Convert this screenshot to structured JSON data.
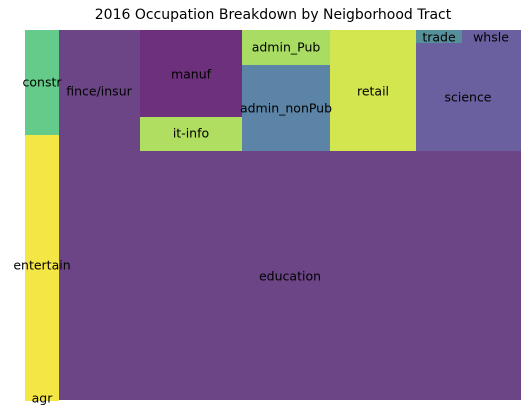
{
  "chart_data": {
    "type": "treemap",
    "title": "2016 Occupation Breakdown by Neigborhood Tract",
    "grid": false,
    "legend": "none",
    "cells": [
      {
        "label": "agr",
        "value": 0.0,
        "color": "#f4e644"
      },
      {
        "label": "entertain",
        "value": 9.2,
        "color": "#f4e644"
      },
      {
        "label": "constr",
        "value": 3.6,
        "color": "#65cb8b"
      },
      {
        "label": "fince/insur",
        "value": 12.9,
        "color": "#6c4586"
      },
      {
        "label": "manuf",
        "value": 3.0,
        "color": "#6c307c"
      },
      {
        "label": "it-info",
        "value": 1.2,
        "color": "#b0de60"
      },
      {
        "label": "admin_Pub",
        "value": 1.1,
        "color": "#a9dc63"
      },
      {
        "label": "admin_nonPub",
        "value": 2.6,
        "color": "#5b84a6"
      },
      {
        "label": "retail",
        "value": 3.6,
        "color": "#d3e650"
      },
      {
        "label": "trade",
        "value": 0.2,
        "color": "#56909a"
      },
      {
        "label": "whsle",
        "value": 0.3,
        "color": "#6a60a0"
      },
      {
        "label": "science",
        "value": 3.2,
        "color": "#6a60a0"
      },
      {
        "label": "education",
        "value": 59.1,
        "color": "#6c4586"
      }
    ]
  }
}
